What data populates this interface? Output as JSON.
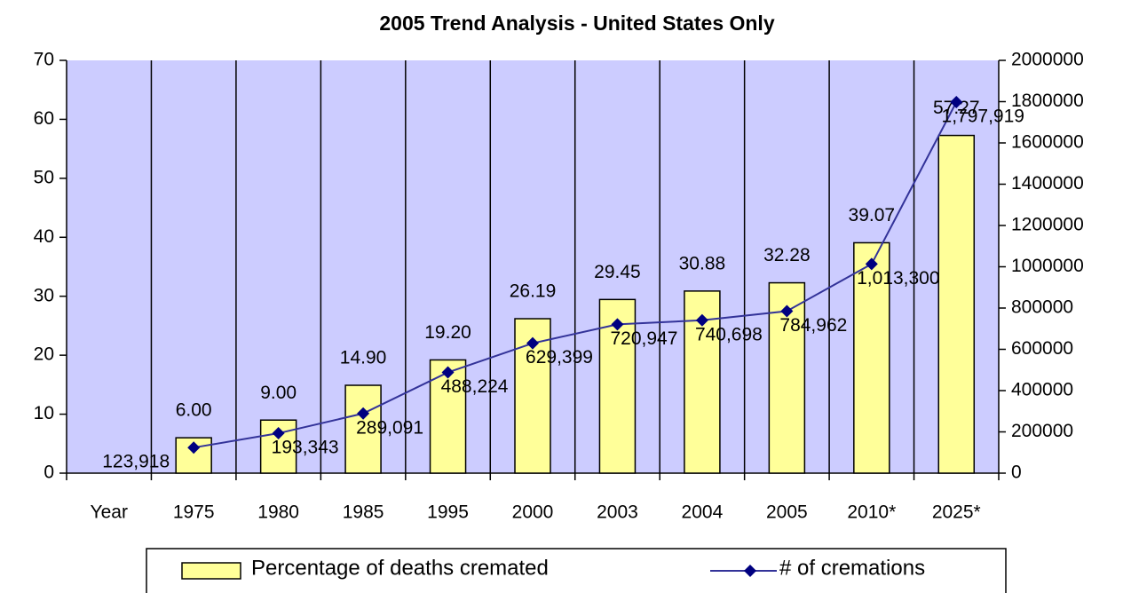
{
  "chart_data": {
    "type": "bar_line",
    "title": "2005 Trend Analysis - United States Only",
    "categories": [
      "Year",
      "1975",
      "1980",
      "1985",
      "1995",
      "2000",
      "2003",
      "2004",
      "2005",
      "2010*",
      "2025*"
    ],
    "series": [
      {
        "name": "Percentage of deaths cremated",
        "type": "bar",
        "color": "#ffff99",
        "values": [
          null,
          6.0,
          9.0,
          14.9,
          19.2,
          26.19,
          29.45,
          30.88,
          32.28,
          39.07,
          57.27
        ],
        "value_labels": [
          null,
          "6.00",
          "9.00",
          "14.90",
          "19.20",
          "26.19",
          "29.45",
          "30.88",
          "32.28",
          "39.07",
          "57.27"
        ]
      },
      {
        "name": "# of cremations",
        "type": "line",
        "axis": "y2",
        "color": "#333399",
        "values": [
          null,
          123918,
          193343,
          289091,
          488224,
          629399,
          720947,
          740698,
          784962,
          1013300,
          1797919
        ],
        "value_labels": [
          null,
          "123,918",
          "193,343",
          "289,091",
          "488,224",
          "629,399",
          "720,947",
          "740,698",
          "784,962",
          "1,013,300",
          "1,797,919"
        ]
      }
    ],
    "ylim": [
      0,
      70
    ],
    "yticks": [
      0,
      10,
      20,
      30,
      40,
      50,
      60,
      70
    ],
    "y2lim": [
      0,
      2000000
    ],
    "y2ticks": [
      0,
      200000,
      400000,
      600000,
      800000,
      1000000,
      1200000,
      1400000,
      1600000,
      1800000,
      2000000
    ],
    "legend": "bottom"
  }
}
